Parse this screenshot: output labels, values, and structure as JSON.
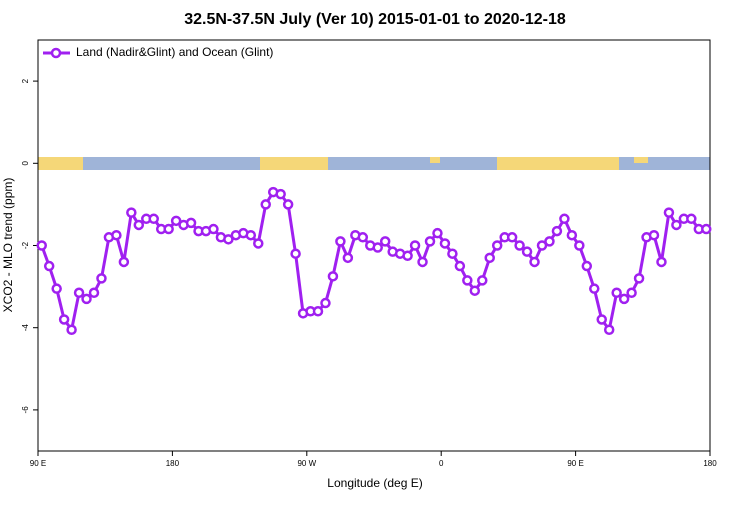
{
  "chart_data": {
    "type": "line",
    "title": "32.5N-37.5N July (Ver 10)   2015-01-01 to 2020-12-18",
    "xlabel": "Longitude (deg E)",
    "ylabel": "XCO2 - MLO trend (ppm)",
    "x": [
      92.5,
      97.5,
      102.5,
      107.5,
      112.5,
      117.5,
      122.5,
      127.5,
      132.5,
      137.5,
      142.5,
      147.5,
      152.5,
      157.5,
      162.5,
      167.5,
      172.5,
      177.5,
      182.5,
      187.5,
      192.5,
      197.5,
      202.5,
      207.5,
      212.5,
      217.5,
      222.5,
      227.5,
      232.5,
      237.5,
      242.5,
      247.5,
      252.5,
      257.5,
      262.5,
      267.5,
      272.5,
      277.5,
      282.5,
      287.5,
      292.5,
      297.5,
      302.5,
      307.5,
      312.5,
      317.5,
      322.5,
      327.5,
      332.5,
      337.5,
      342.5,
      347.5,
      352.5,
      357.5,
      362.5,
      367.5,
      372.5,
      377.5,
      382.5,
      387.5,
      392.5,
      397.5,
      402.5,
      407.5,
      412.5,
      417.5,
      422.5,
      427.5,
      432.5,
      437.5,
      442.5,
      447.5,
      452.5,
      457.5,
      462.5,
      467.5,
      472.5,
      477.5,
      482.5,
      487.5,
      492.5,
      497.5,
      502.5,
      507.5,
      512.5,
      517.5,
      522.5,
      527.5,
      532.5,
      537.5
    ],
    "series": [
      {
        "name": "Land (Nadir&Glint) and Ocean (Glint)",
        "color": "#a020f0",
        "values": [
          -2.0,
          -2.5,
          -3.05,
          -3.8,
          -4.05,
          -3.15,
          -3.3,
          -3.15,
          -2.8,
          -1.8,
          -1.75,
          -2.4,
          -1.2,
          -1.5,
          -1.35,
          -1.35,
          -1.6,
          -1.6,
          -1.4,
          -1.5,
          -1.45,
          -1.65,
          -1.65,
          -1.6,
          -1.8,
          -1.85,
          -1.75,
          -1.7,
          -1.75,
          -1.95,
          -1.0,
          -0.7,
          -0.75,
          -1.0,
          -2.2,
          -3.65,
          -3.6,
          -3.6,
          -3.4,
          -2.75,
          -1.9,
          -2.3,
          -1.75,
          -1.8,
          -2.0,
          -2.05,
          -1.9,
          -2.15,
          -2.2,
          -2.25,
          -2.0,
          -2.4,
          -1.9,
          -1.7,
          -1.95,
          -2.2,
          -2.5,
          -2.85,
          -3.1,
          -2.85,
          -2.3,
          -2.0,
          -1.8,
          -1.8,
          -2.0,
          -2.15,
          -2.4,
          -2.0,
          -1.9,
          -1.65,
          -1.35,
          -1.75,
          -2.0,
          -2.5,
          -3.05,
          -3.8,
          -4.05,
          -3.15,
          -3.3,
          -3.15,
          -2.8,
          -1.8,
          -1.75,
          -2.4,
          -1.2,
          -1.5,
          -1.35,
          -1.35,
          -1.6,
          -1.6
        ]
      }
    ],
    "xlim": [
      90,
      540
    ],
    "xticks": [
      {
        "value": 90,
        "label": "90 E"
      },
      180,
      {
        "value": 270,
        "label": "90 W"
      },
      {
        "value": 360,
        "label": "0"
      },
      {
        "value": 450,
        "label": "90 E"
      },
      {
        "value": 540,
        "label": "180"
      }
    ],
    "ylim": [
      -7,
      3
    ],
    "yticks": [
      -6,
      -4,
      -2,
      0,
      2
    ],
    "legend": "top-left"
  }
}
